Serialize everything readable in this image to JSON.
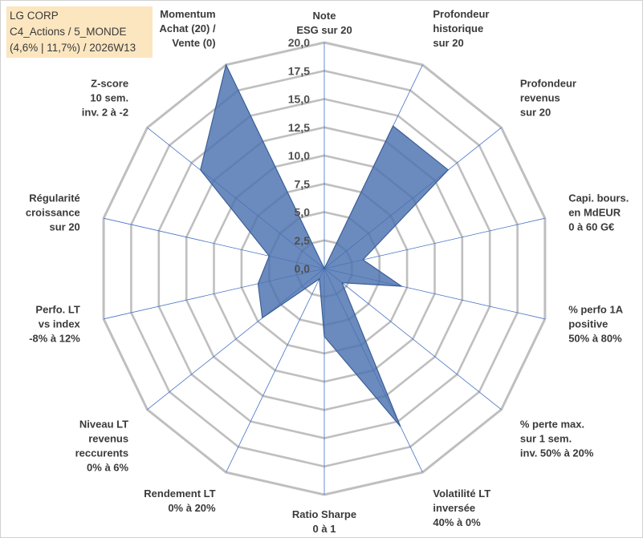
{
  "header": {
    "line1": "LG CORP",
    "line2": "C4_Actions / 5_MONDE",
    "line3": "(4,6% | 11,7%) / 2026W13"
  },
  "colors": {
    "grid": "#bfbfbf",
    "spoke": "#4472c4",
    "fill": "#4a72b0",
    "stroke": "#3b5e96",
    "title_bg": "#fce6c0"
  },
  "chart_data": {
    "type": "radar",
    "title": "",
    "range": [
      0,
      20
    ],
    "ticks": [
      "0,0",
      "2,5",
      "5,0",
      "7,5",
      "10,0",
      "12,5",
      "15,0",
      "17,5",
      "20,0"
    ],
    "axes": [
      {
        "label": [
          "Note",
          "ESG sur 20"
        ]
      },
      {
        "label": [
          "Profondeur",
          "historique",
          "sur 20"
        ]
      },
      {
        "label": [
          "Profondeur",
          "revenus",
          "sur 20"
        ]
      },
      {
        "label": [
          "Capi. bours.",
          "en MdEUR",
          "0 à 60 G€"
        ]
      },
      {
        "label": [
          "% perfo 1A",
          "positive",
          "50% à 80%"
        ]
      },
      {
        "label": [
          "% perte max.",
          "sur 1 sem.",
          "inv. 50% à 20%"
        ]
      },
      {
        "label": [
          "Volatilité LT",
          "inversée",
          "40% à 0%"
        ]
      },
      {
        "label": [
          "Ratio Sharpe",
          "0 à 1"
        ]
      },
      {
        "label": [
          "Rendement LT",
          "0% à 20%"
        ]
      },
      {
        "label": [
          "Niveau LT",
          "revenus",
          "reccurents",
          "0% à 6%"
        ]
      },
      {
        "label": [
          "Perfo. LT",
          "vs index",
          "-8% à 12%"
        ]
      },
      {
        "label": [
          "Régularité",
          "croissance",
          "sur 20"
        ]
      },
      {
        "label": [
          "Z-score",
          "10 sem.",
          "inv. 2 à -2"
        ]
      },
      {
        "label": [
          "Momentum",
          "Achat (20) /",
          "Vente (0)"
        ]
      }
    ],
    "series": [
      {
        "name": "LG CORP",
        "values": [
          0.0,
          14.0,
          14.0,
          3.5,
          7.0,
          2.0,
          15.5,
          6.0,
          1.0,
          7.0,
          6.0,
          5.0,
          14.0,
          20.0
        ]
      }
    ]
  }
}
